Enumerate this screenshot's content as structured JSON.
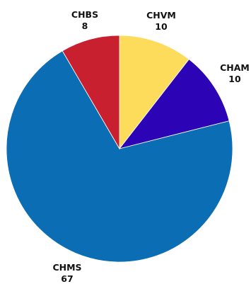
{
  "chart_data": {
    "type": "pie",
    "title": "",
    "legend": "none",
    "slices": [
      {
        "label": "CHVM",
        "value": 10,
        "value_label": "10",
        "color": "#FDDC5C"
      },
      {
        "label": "CHAM",
        "value": 10,
        "value_label": "10",
        "color": "#2C03B5"
      },
      {
        "label": "CHMS",
        "value": 67,
        "value_label": "67",
        "color": "#0B6DB4"
      },
      {
        "label": "CHBS",
        "value": 8,
        "value_label": "8",
        "color": "#C8202F"
      }
    ]
  }
}
